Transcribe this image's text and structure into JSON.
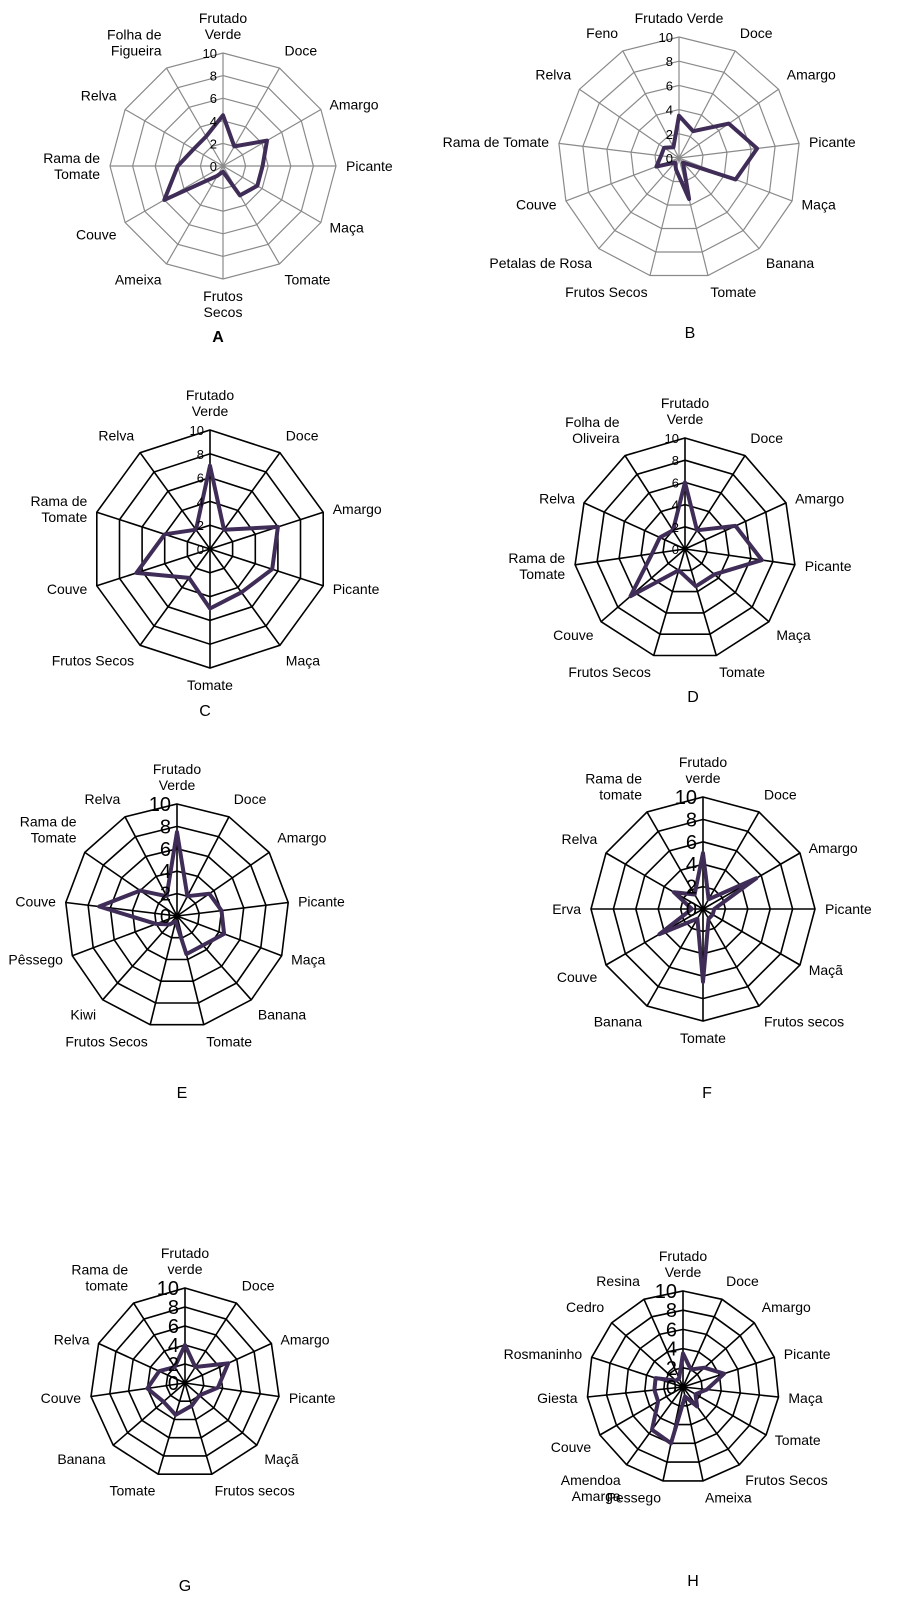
{
  "chart_data": [
    {
      "type": "radar",
      "panel_label": "A",
      "categories": [
        "Frutado\nVerde",
        "Doce",
        "Amargo",
        "Picante",
        "Maça",
        "Tomate",
        "Frutos\nSecos",
        "Ameixa",
        "Couve",
        "Rama de\nTomate",
        "Relva",
        "Folha de\nFigueira"
      ],
      "values": [
        4.5,
        2,
        4.5,
        3.5,
        3.5,
        3,
        0.5,
        1,
        6,
        4,
        3,
        3
      ],
      "rlim": [
        0,
        10
      ],
      "ticks": [
        "0",
        "2",
        "4",
        "6",
        "8",
        "10"
      ],
      "color": "#3f2d58"
    },
    {
      "type": "radar",
      "panel_label": "B",
      "categories": [
        "Frutado Verde",
        "Doce",
        "Amargo",
        "Picante",
        "Maça",
        "Banana",
        "Tomate",
        "Frutos Secos",
        "Petalas de Rosa",
        "Couve",
        "Rama de Tomate",
        "Relva",
        "Feno"
      ],
      "values": [
        3.5,
        2.5,
        5,
        6.5,
        5,
        0.5,
        3.5,
        1,
        0.5,
        2,
        1.5,
        1.5,
        1
      ],
      "rlim": [
        0,
        10
      ],
      "ticks": [
        "0",
        "2",
        "4",
        "6",
        "8",
        "10"
      ],
      "color": "#3f2d58"
    },
    {
      "type": "radar",
      "panel_label": "C",
      "categories": [
        "Frutado\nVerde",
        "Doce",
        "Amargo",
        "Picante",
        "Maça",
        "Tomate",
        "Frutos Secos",
        "Couve",
        "Rama de\nTomate",
        "Relva"
      ],
      "values": [
        7,
        2,
        6,
        5.5,
        4.5,
        5,
        3,
        6.5,
        4,
        2
      ],
      "rlim": [
        0,
        10
      ],
      "ticks": [
        "0",
        "2",
        "4",
        "6",
        "8",
        "10"
      ],
      "color": "#3f2d58"
    },
    {
      "type": "radar",
      "panel_label": "D",
      "categories": [
        "Frutado\nVerde",
        "Doce",
        "Amargo",
        "Picante",
        "Maça",
        "Tomate",
        "Frutos Secos",
        "Couve",
        "Rama de\nTomate",
        "Relva",
        "Folha de\nOliveira"
      ],
      "values": [
        6,
        2,
        5,
        7,
        3.5,
        3.5,
        2,
        6.5,
        3,
        2.5,
        2
      ],
      "rlim": [
        0,
        10
      ],
      "ticks": [
        "0",
        "2",
        "4",
        "6",
        "8",
        "10"
      ],
      "color": "#3f2d58"
    },
    {
      "type": "radar",
      "panel_label": "E",
      "categories": [
        "Frutado\nVerde",
        "Doce",
        "Amargo",
        "Picante",
        "Maça",
        "Banana",
        "Tomate",
        "Frutos Secos",
        "Kiwi",
        "Pêssego",
        "Couve",
        "Rama de\nTomate",
        "Relva"
      ],
      "values": [
        7.5,
        2,
        3.5,
        4,
        4.5,
        3.5,
        3.5,
        0.5,
        1,
        2,
        7,
        4,
        2
      ],
      "rlim": [
        0,
        10
      ],
      "ticks": [
        "0",
        "2",
        "4",
        "6",
        "8",
        "10"
      ],
      "color": "#3f2d58"
    },
    {
      "type": "radar",
      "panel_label": "F",
      "categories": [
        "Frutado\nverde",
        "Doce",
        "Amargo",
        "Picante",
        "Maçã",
        "Frutos secos",
        "Tomate",
        "Banana",
        "Couve",
        "Erva",
        "Relva",
        "Rama de\ntomate"
      ],
      "values": [
        5,
        1,
        5.5,
        1,
        1,
        1,
        6.5,
        1,
        4.5,
        1,
        3,
        1.5
      ],
      "rlim": [
        0,
        10
      ],
      "ticks": [
        "0",
        "2",
        "4",
        "6",
        "8",
        "10"
      ],
      "color": "#3f2d58"
    },
    {
      "type": "radar",
      "panel_label": "G",
      "categories": [
        "Frutado\nverde",
        "Doce",
        "Amargo",
        "Picante",
        "Maçã",
        "Frutos secos",
        "Tomate",
        "Banana",
        "Couve",
        "Relva",
        "Rama de\ntomate"
      ],
      "values": [
        4,
        2,
        5,
        3.5,
        2,
        2.5,
        3.5,
        3,
        4,
        3,
        2
      ],
      "rlim": [
        0,
        10
      ],
      "ticks": [
        "0",
        "2",
        "4",
        "6",
        "8",
        "10"
      ],
      "color": "#3f2d58"
    },
    {
      "type": "radar",
      "panel_label": "H",
      "categories": [
        "Frutado\nVerde",
        "Doce",
        "Amargo",
        "Picante",
        "Maça",
        "Tomate",
        "Frutos Secos",
        "Ameixa",
        "Pessego",
        "Amendoa\nAmarga",
        "Couve",
        "Giesta",
        "Rosmaninho",
        "Cedro",
        "Resina"
      ],
      "values": [
        3.5,
        2,
        3,
        4.5,
        2.5,
        1.5,
        2.5,
        1,
        6,
        5.5,
        3,
        3,
        3,
        1,
        1
      ],
      "rlim": [
        0,
        10
      ],
      "ticks": [
        "0",
        "2",
        "4",
        "6",
        "8",
        "10"
      ],
      "color": "#3f2d58"
    }
  ]
}
